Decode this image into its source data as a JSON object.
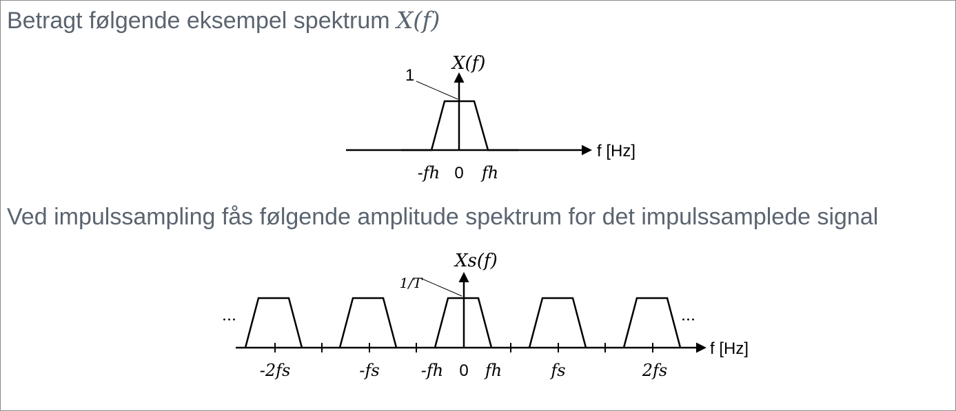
{
  "heading1": {
    "text": "Betragt følgende eksempel spektrum",
    "math": "X(f)"
  },
  "heading2": {
    "text": "Ved impulssampling fås følgende amplitude spektrum for det impulssamplede signal"
  },
  "diagram1": {
    "y_label": "X(f)",
    "peak_label": "1",
    "x_unit": "f [Hz]",
    "ticks": {
      "neg_fh": "-fh",
      "zero": "0",
      "fh": "fh"
    }
  },
  "diagram2": {
    "y_label": "Xs(f)",
    "peak_label": "1/T",
    "x_unit": "f [Hz]",
    "ellipsis_left": "···",
    "ellipsis_right": "···",
    "ticks": {
      "neg_2fs": "-2fs",
      "neg_fs": "-fs",
      "neg_fh": "-fh",
      "zero": "0",
      "fh": "fh",
      "fs": "fs",
      "two_fs": "2fs"
    }
  }
}
